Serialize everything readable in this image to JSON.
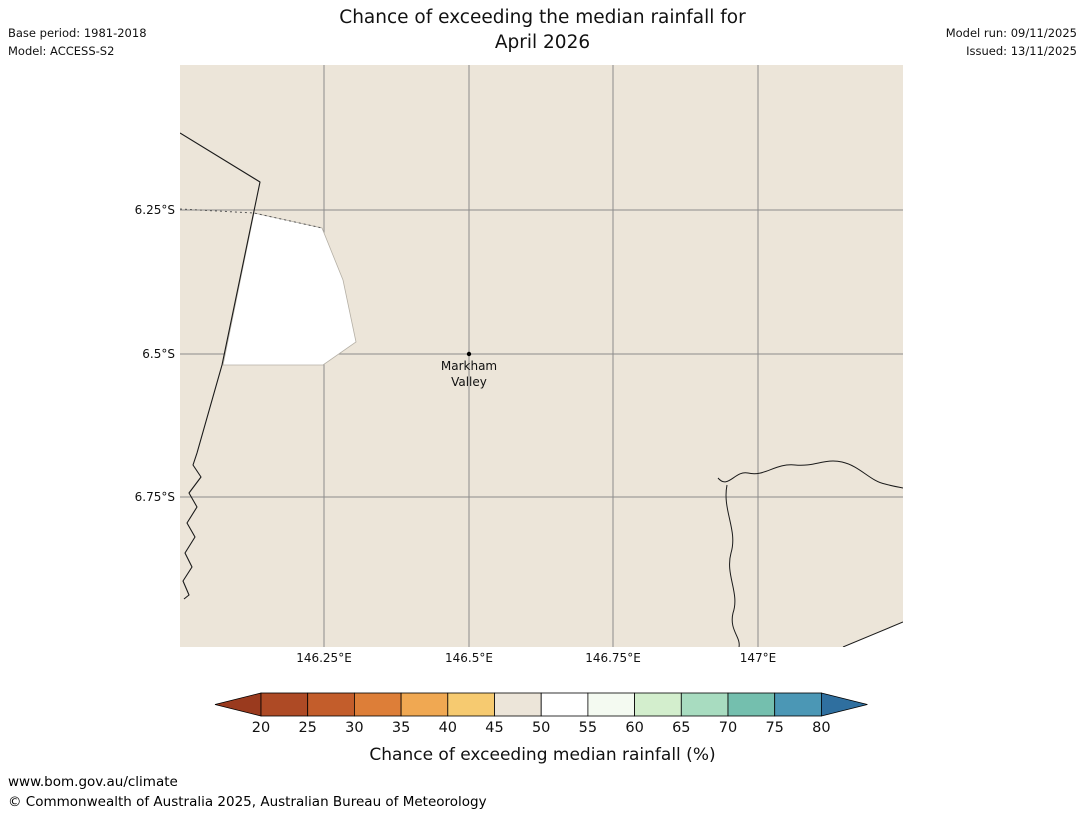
{
  "header": {
    "title_line1": "Chance of exceeding the median rainfall for",
    "title_line2": "April 2026",
    "base_period": "Base period: 1981-2018",
    "model": "Model: ACCESS-S2",
    "model_run": "Model run: 09/11/2025",
    "issued": "Issued: 13/11/2025"
  },
  "map": {
    "lat_labels": [
      "6.25°S",
      "6.5°S",
      "6.75°S"
    ],
    "lon_labels": [
      "146.25°E",
      "146.5°E",
      "146.75°E",
      "147°E"
    ],
    "marker_label_line1": "Markham",
    "marker_label_line2": "Valley",
    "land_color": "#ece5d9",
    "highlight_color": "#ffffff"
  },
  "colorbar": {
    "ticks": [
      "20",
      "25",
      "30",
      "35",
      "40",
      "45",
      "50",
      "55",
      "60",
      "65",
      "70",
      "75",
      "80"
    ],
    "segment_colors": [
      "#9a3a1e",
      "#ae4a25",
      "#c35d2b",
      "#dd7e38",
      "#f0a852",
      "#f6ca70",
      "#ece5d9",
      "#ffffff",
      "#f4faf1",
      "#d3eecd",
      "#a8dcc0",
      "#74bfae",
      "#4b97b5",
      "#2f6f9f"
    ],
    "label": "Chance of exceeding median rainfall (%)"
  },
  "footer": {
    "url": "www.bom.gov.au/climate",
    "copyright": "© Commonwealth of Australia 2025, Australian Bureau of Meteorology"
  },
  "chart_data": {
    "type": "heatmap",
    "title": "Chance of exceeding the median rainfall for April 2026",
    "colorbar_label": "Chance of exceeding median rainfall (%)",
    "colorbar_ticks": [
      20,
      25,
      30,
      35,
      40,
      45,
      50,
      55,
      60,
      65,
      70,
      75,
      80
    ],
    "x_tick_labels": [
      "146.25°E",
      "146.5°E",
      "146.75°E",
      "147°E"
    ],
    "y_tick_labels": [
      "6.25°S",
      "6.5°S",
      "6.75°S"
    ],
    "regions": [
      {
        "value_range": "45-50",
        "color": "#ece5d9",
        "description": "beige land area covering most of the map"
      },
      {
        "value_range": "50-55",
        "color": "#ffffff",
        "description": "white patch west of 146.25°E between about 6.25°S and 6.5°S"
      }
    ],
    "marker": {
      "name": "Markham Valley",
      "lon": "146.5°E",
      "lat": "6.5°S"
    },
    "legend_position": "bottom",
    "grid": true
  }
}
